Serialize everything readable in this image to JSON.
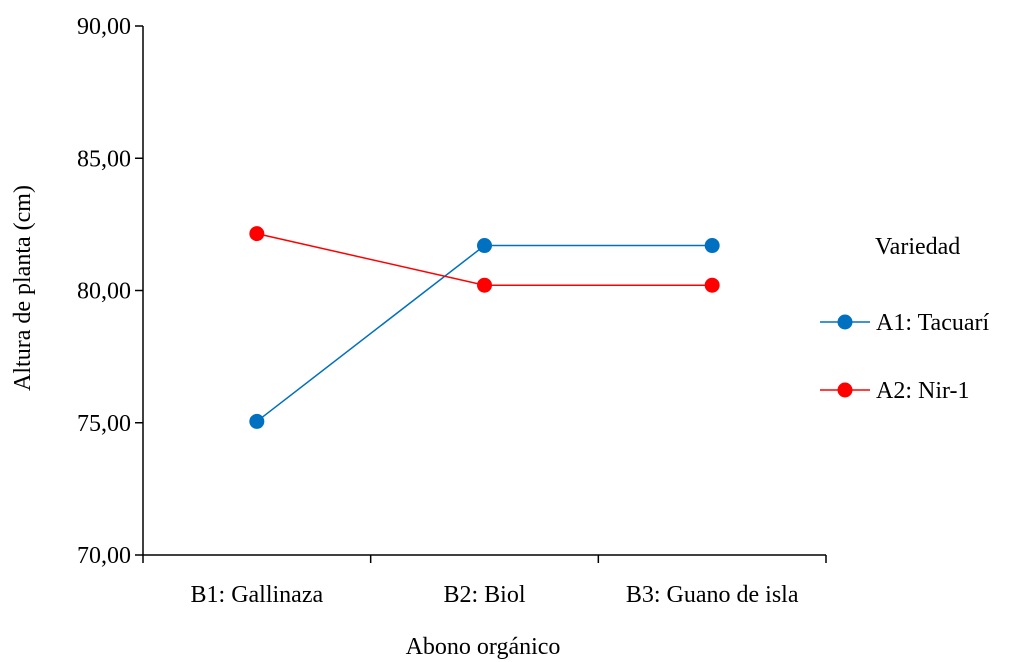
{
  "chart_data": {
    "type": "line",
    "xlabel": "Abono orgánico",
    "ylabel": "Altura de planta (cm)",
    "ylim": [
      70,
      90
    ],
    "yticks": [
      "70,00",
      "75,00",
      "80,00",
      "85,00",
      "90,00"
    ],
    "categories": [
      "B1: Gallinaza",
      "B2: Biol",
      "B3: Guano de isla"
    ],
    "legend": {
      "title": "Variedad",
      "placement": "right"
    },
    "grid": false,
    "series": [
      {
        "name": "A1: Tacuarí",
        "color": "#0070C0",
        "values": [
          75.05,
          81.7,
          81.7
        ]
      },
      {
        "name": "A2: Nir-1",
        "color": "#FF0000",
        "values": [
          82.15,
          80.2,
          80.2
        ]
      }
    ]
  }
}
